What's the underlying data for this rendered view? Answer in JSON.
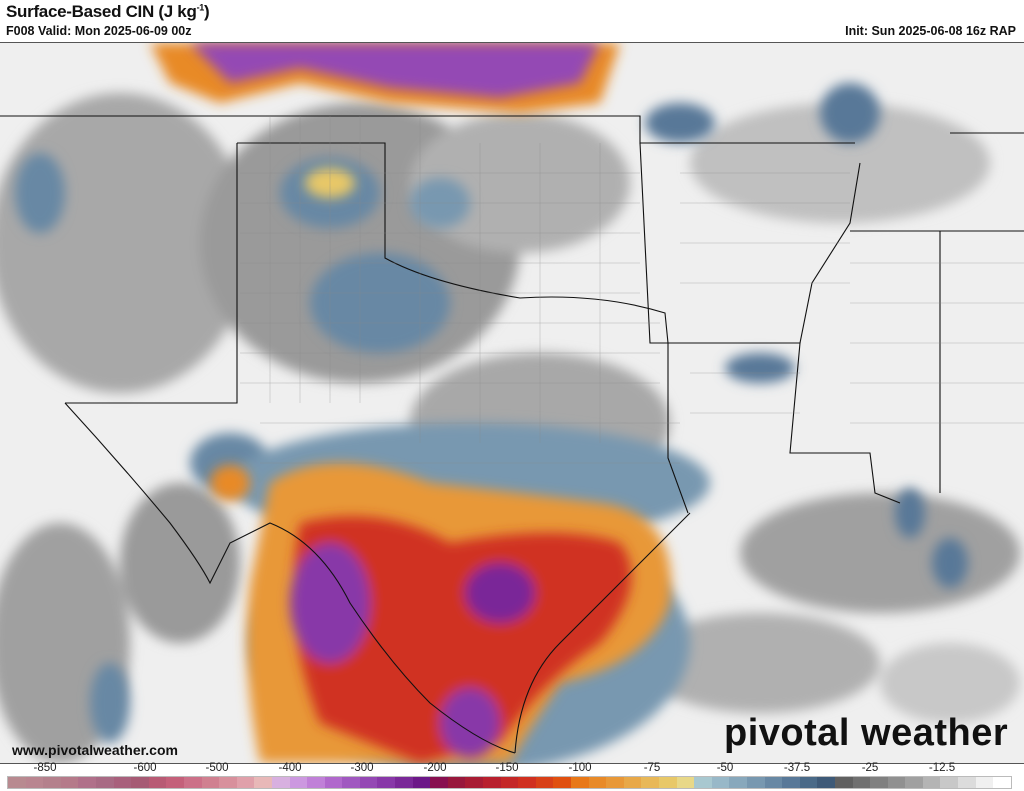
{
  "header": {
    "title": "Surface-Based CIN (J kg",
    "title_sup": "-1",
    "title_end": ")",
    "valid": "F008 Valid: Mon 2025-06-09 00z",
    "init": "Init: Sun 2025-06-08 16z RAP"
  },
  "map": {
    "region": "Southern Plains / Texas / Lower Mississippi Valley",
    "website": "www.pivotalweather.com",
    "logo": "pivotal weather"
  },
  "colorbar": {
    "ticks": [
      "-850",
      "-600",
      "-500",
      "-400",
      "-300",
      "-200",
      "-150",
      "-100",
      "-75",
      "-50",
      "-37.5",
      "-25",
      "-12.5"
    ],
    "colors": [
      "#b88a90",
      "#b98590",
      "#b4808c",
      "#b57a8a",
      "#b0708a",
      "#a86a84",
      "#a8607c",
      "#a65a74",
      "#b85a74",
      "#c4607a",
      "#cc7088",
      "#d08090",
      "#d8909c",
      "#e0a0aa",
      "#e8b8b8",
      "#d8b0e0",
      "#cc98e0",
      "#c080d8",
      "#b068cc",
      "#a058c0",
      "#9448b4",
      "#8838a8",
      "#7a2898",
      "#6c1888",
      "#881050",
      "#98183c",
      "#a81c34",
      "#b8202e",
      "#c42828",
      "#d03020",
      "#d84018",
      "#e05010",
      "#e87818",
      "#e88a28",
      "#e89838",
      "#e8a848",
      "#e8b858",
      "#e8c868",
      "#e8d888",
      "#a8c8d0",
      "#98b8c8",
      "#88a8bc",
      "#7898b0",
      "#6888a4",
      "#587898",
      "#4a6a88",
      "#3e5a78",
      "#606060",
      "#707070",
      "#808080",
      "#909090",
      "#a0a0a0",
      "#b4b4b4",
      "#c8c8c8",
      "#dcdcdc",
      "#f0f0f0",
      "#ffffff"
    ]
  }
}
